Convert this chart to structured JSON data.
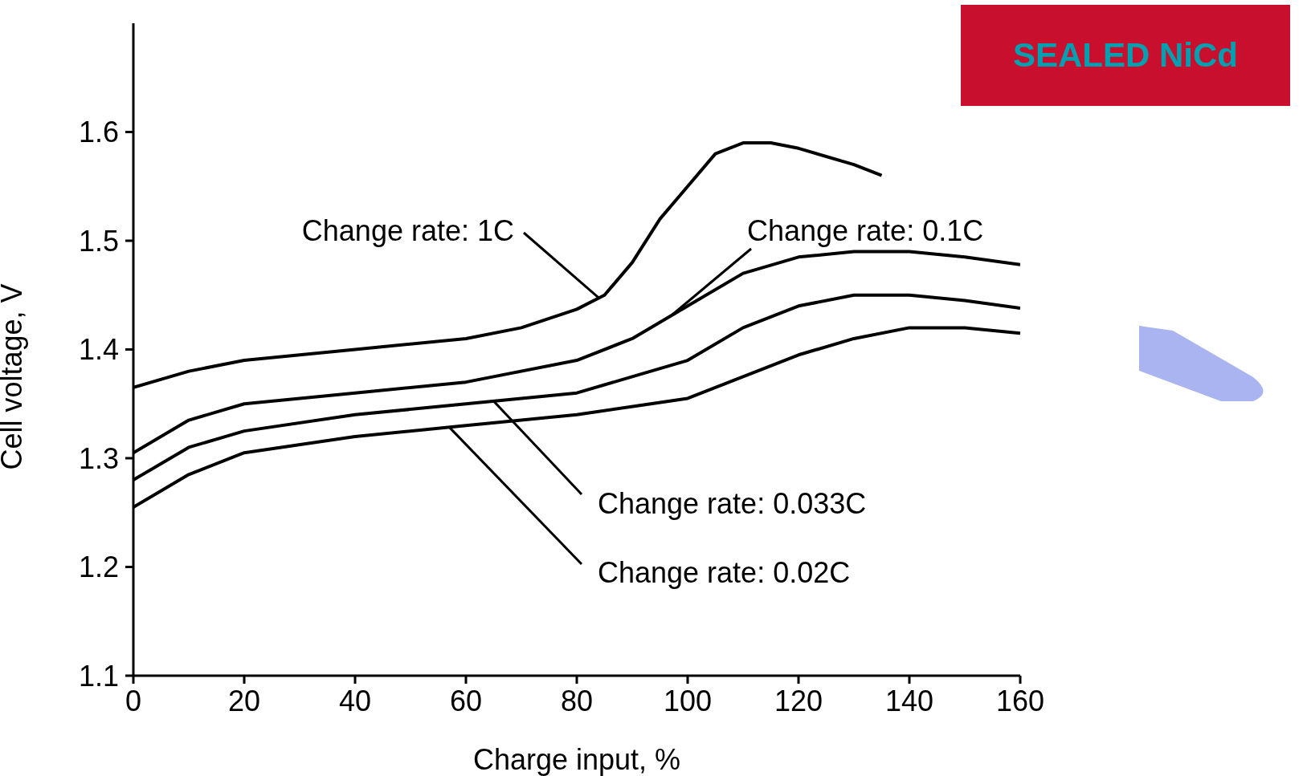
{
  "chart_data": {
    "type": "line",
    "title": "SEALED NiCd",
    "xlabel": "Charge input, %",
    "ylabel": "Cell voltage, V",
    "xlim": [
      0,
      160
    ],
    "xticks": [
      0,
      20,
      40,
      60,
      80,
      100,
      120,
      140,
      160
    ],
    "ylim": [
      1.1,
      1.7
    ],
    "yticks": [
      1.1,
      1.2,
      1.3,
      1.4,
      1.5,
      1.6
    ],
    "grid": false,
    "legend": false,
    "marker": "none",
    "line_style": "solid",
    "series": [
      {
        "name": "Change rate: 1C",
        "color": "#000000",
        "x": [
          0,
          10,
          20,
          40,
          60,
          70,
          80,
          85,
          90,
          95,
          100,
          105,
          110,
          115,
          120,
          130,
          135
        ],
        "values": [
          1.365,
          1.38,
          1.39,
          1.4,
          1.41,
          1.42,
          1.437,
          1.45,
          1.48,
          1.52,
          1.55,
          1.58,
          1.59,
          1.59,
          1.585,
          1.57,
          1.56
        ]
      },
      {
        "name": "Change rate: 0.1C",
        "color": "#000000",
        "x": [
          0,
          10,
          20,
          40,
          60,
          80,
          90,
          100,
          110,
          120,
          130,
          140,
          150,
          160
        ],
        "values": [
          1.305,
          1.335,
          1.35,
          1.36,
          1.37,
          1.39,
          1.41,
          1.44,
          1.47,
          1.485,
          1.49,
          1.49,
          1.485,
          1.478
        ]
      },
      {
        "name": "Change rate: 0.033C",
        "color": "#000000",
        "x": [
          0,
          10,
          20,
          40,
          60,
          80,
          90,
          100,
          110,
          120,
          130,
          140,
          150,
          160
        ],
        "values": [
          1.28,
          1.31,
          1.325,
          1.34,
          1.35,
          1.36,
          1.375,
          1.39,
          1.42,
          1.44,
          1.45,
          1.45,
          1.445,
          1.438
        ]
      },
      {
        "name": "Change rate: 0.02C",
        "color": "#000000",
        "x": [
          0,
          10,
          20,
          40,
          60,
          80,
          100,
          110,
          120,
          130,
          140,
          150,
          160
        ],
        "values": [
          1.255,
          1.285,
          1.305,
          1.32,
          1.33,
          1.34,
          1.355,
          1.375,
          1.395,
          1.41,
          1.42,
          1.42,
          1.415
        ]
      }
    ]
  }
}
